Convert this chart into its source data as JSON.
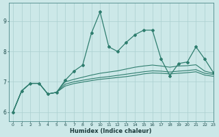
{
  "xlabel": "Humidex (Indice chaleur)",
  "xlim": [
    -0.5,
    23
  ],
  "ylim": [
    5.7,
    9.6
  ],
  "yticks": [
    6,
    7,
    8,
    9
  ],
  "xticks": [
    0,
    1,
    2,
    3,
    4,
    5,
    6,
    7,
    8,
    9,
    10,
    11,
    12,
    13,
    14,
    15,
    16,
    17,
    18,
    19,
    20,
    21,
    22,
    23
  ],
  "bg_color": "#cce8e8",
  "line_color": "#2e7d6e",
  "grid_color": "#aacfcf",
  "lines": [
    {
      "x": [
        0,
        1,
        2,
        3,
        4,
        5,
        6,
        7,
        8,
        9,
        10,
        11,
        12,
        13,
        14,
        15,
        16,
        17,
        18,
        19,
        20,
        21,
        22,
        23
      ],
      "y": [
        6.0,
        6.7,
        6.95,
        6.95,
        6.6,
        6.65,
        7.05,
        7.35,
        7.55,
        8.6,
        9.3,
        8.15,
        8.0,
        8.3,
        8.55,
        8.7,
        8.7,
        7.75,
        7.2,
        7.6,
        7.65,
        8.15,
        7.75,
        7.3
      ],
      "marker": "D",
      "markersize": 2.0,
      "lw": 0.9
    },
    {
      "x": [
        0,
        1,
        2,
        3,
        4,
        5,
        6,
        7,
        8,
        9,
        10,
        11,
        12,
        13,
        14,
        15,
        16,
        17,
        18,
        19,
        20,
        21,
        22,
        23
      ],
      "y": [
        6.0,
        6.7,
        6.95,
        6.95,
        6.6,
        6.65,
        7.0,
        7.08,
        7.15,
        7.22,
        7.28,
        7.32,
        7.36,
        7.42,
        7.48,
        7.52,
        7.55,
        7.52,
        7.48,
        7.52,
        7.53,
        7.56,
        7.35,
        7.28
      ],
      "marker": null,
      "lw": 0.8
    },
    {
      "x": [
        0,
        1,
        2,
        3,
        4,
        5,
        6,
        7,
        8,
        9,
        10,
        11,
        12,
        13,
        14,
        15,
        16,
        17,
        18,
        19,
        20,
        21,
        22,
        23
      ],
      "y": [
        6.0,
        6.7,
        6.95,
        6.95,
        6.6,
        6.65,
        6.92,
        7.0,
        7.05,
        7.1,
        7.14,
        7.17,
        7.21,
        7.25,
        7.29,
        7.33,
        7.36,
        7.35,
        7.32,
        7.35,
        7.37,
        7.4,
        7.28,
        7.24
      ],
      "marker": null,
      "lw": 0.8
    },
    {
      "x": [
        0,
        1,
        2,
        3,
        4,
        5,
        6,
        7,
        8,
        9,
        10,
        11,
        12,
        13,
        14,
        15,
        16,
        17,
        18,
        19,
        20,
        21,
        22,
        23
      ],
      "y": [
        6.0,
        6.7,
        6.95,
        6.95,
        6.6,
        6.65,
        6.86,
        6.94,
        6.99,
        7.04,
        7.08,
        7.11,
        7.14,
        7.17,
        7.21,
        7.26,
        7.29,
        7.28,
        7.26,
        7.28,
        7.3,
        7.33,
        7.22,
        7.18
      ],
      "marker": null,
      "lw": 0.8
    }
  ]
}
